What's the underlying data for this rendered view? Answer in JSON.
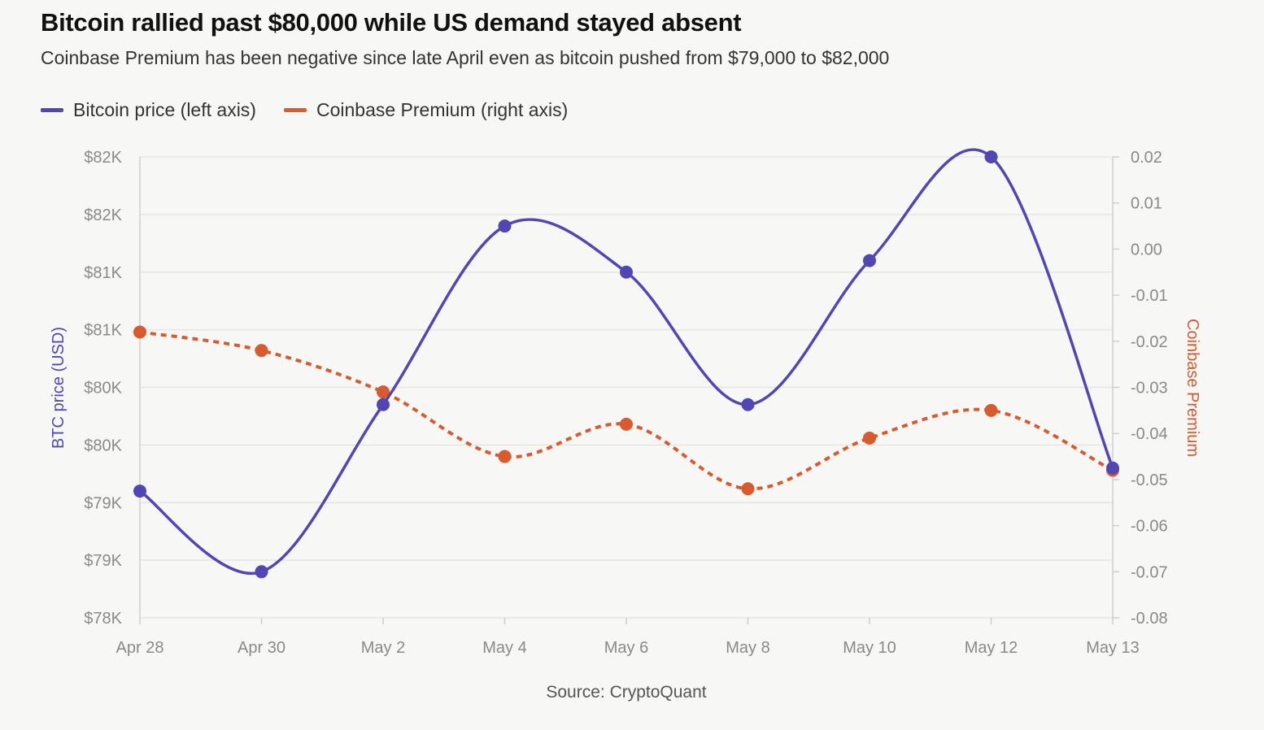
{
  "header": {
    "title": "Bitcoin rallied past $80,000 while US demand stayed absent",
    "subtitle": "Coinbase Premium has been negative since late April even as bitcoin pushed from $79,000 to $82,000"
  },
  "footer": {
    "source": "Source: CryptoQuant"
  },
  "colors": {
    "btc": "#5246b5",
    "premium": "#d85a2e",
    "grid": "#e6e6e3",
    "background": "#f7f7f5"
  },
  "chart_data": {
    "type": "line",
    "x": [
      "Apr 28",
      "Apr 30",
      "May 2",
      "May 4",
      "May 6",
      "May 8",
      "May 10",
      "May 12",
      "May 13"
    ],
    "series": [
      {
        "name": "Bitcoin price (left axis)",
        "axis": "left",
        "style": "solid",
        "values": [
          79100,
          78400,
          79850,
          81400,
          81000,
          79850,
          81100,
          82000,
          79300
        ]
      },
      {
        "name": "Coinbase Premium (right axis)",
        "axis": "right",
        "style": "dashed",
        "values": [
          -0.018,
          -0.022,
          -0.031,
          -0.045,
          -0.038,
          -0.052,
          -0.041,
          -0.035,
          -0.048
        ]
      }
    ],
    "left_axis": {
      "label": "BTC price (USD)",
      "ticks": [
        "$82K",
        "$82K",
        "$81K",
        "$81K",
        "$80K",
        "$80K",
        "$79K",
        "$79K",
        "$78K"
      ],
      "range": [
        78000,
        82000
      ]
    },
    "right_axis": {
      "label": "Coinbase Premium",
      "ticks": [
        "0.02",
        "0.01",
        "0.00",
        "-0.01",
        "-0.02",
        "-0.03",
        "-0.04",
        "-0.05",
        "-0.06",
        "-0.07",
        "-0.08"
      ],
      "range": [
        -0.08,
        0.02
      ]
    },
    "grid": true,
    "legend_position": "top-left"
  }
}
